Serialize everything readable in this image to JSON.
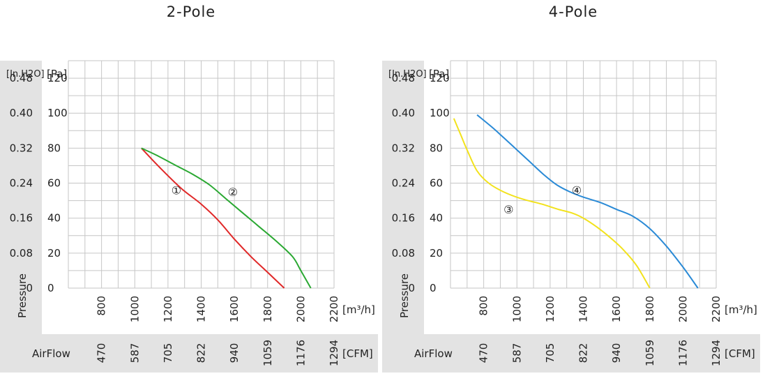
{
  "chart_data": [
    {
      "type": "line",
      "title": "2-Pole",
      "ylabel": "Pressure",
      "y_unit_inh2o": "[In.H2O]",
      "y_unit_pa": "[Pa]",
      "x_unit_m3h": "[m³/h]",
      "x_unit_cfm": "[CFM]",
      "x_axis2_label": "AirFlow",
      "xlim": [
        600,
        2200
      ],
      "ylim": [
        0,
        130
      ],
      "x_ticks_m3h": [
        "800",
        "1000",
        "1200",
        "1400",
        "1600",
        "1800",
        "2000",
        "2200"
      ],
      "x_ticks_cfm": [
        "470",
        "587",
        "705",
        "822",
        "940",
        "1059",
        "1176",
        "1294"
      ],
      "y_ticks_pa": [
        "120",
        "100",
        "80",
        "60",
        "40",
        "20",
        "0"
      ],
      "y_ticks_inh2o": [
        "0.48",
        "0.40",
        "0.32",
        "0.24",
        "0.16",
        "0.08",
        "0"
      ],
      "grid": true,
      "series": [
        {
          "marker": "①",
          "color": "#e02828",
          "x": [
            1040,
            1150,
            1280,
            1400,
            1500,
            1600,
            1700,
            1800,
            1900
          ],
          "y": [
            80,
            69,
            57,
            48,
            39,
            28,
            18,
            9,
            0
          ],
          "marker_pos": [
            1250,
            56
          ]
        },
        {
          "marker": "②",
          "color": "#2aa832",
          "x": [
            1040,
            1130,
            1250,
            1350,
            1450,
            1550,
            1650,
            1750,
            1850,
            1950,
            2000,
            2060
          ],
          "y": [
            80,
            76,
            70,
            65,
            59,
            51,
            43,
            35,
            27,
            18,
            10,
            0
          ],
          "marker_pos": [
            1590,
            55
          ]
        }
      ]
    },
    {
      "type": "line",
      "title": "4-Pole",
      "ylabel": "Pressure",
      "y_unit_inh2o": "[In.H2O]",
      "y_unit_pa": "[Pa]",
      "x_unit_m3h": "[m³/h]",
      "x_unit_cfm": "[CFM]",
      "x_axis2_label": "AirFlow",
      "xlim": [
        600,
        2200
      ],
      "ylim": [
        0,
        130
      ],
      "x_ticks_m3h": [
        "800",
        "1000",
        "1200",
        "1400",
        "1600",
        "1800",
        "2000",
        "2200"
      ],
      "x_ticks_cfm": [
        "470",
        "587",
        "705",
        "822",
        "940",
        "1059",
        "1176",
        "1294"
      ],
      "y_ticks_pa": [
        "120",
        "100",
        "80",
        "60",
        "40",
        "20",
        "0"
      ],
      "y_ticks_inh2o": [
        "0.48",
        "0.40",
        "0.32",
        "0.24",
        "0.16",
        "0.08",
        "0"
      ],
      "grid": true,
      "series": [
        {
          "marker": "③",
          "color": "#f2e21c",
          "x": [
            620,
            660,
            700,
            760,
            830,
            920,
            1030,
            1150,
            1250,
            1330,
            1400,
            1480,
            1560,
            1640,
            1720,
            1800
          ],
          "y": [
            97,
            88,
            79,
            67,
            60,
            55,
            51,
            48,
            45,
            43,
            40,
            35,
            29,
            22,
            13,
            0
          ],
          "marker_pos": [
            950,
            45
          ]
        },
        {
          "marker": "④",
          "color": "#2a8ad6",
          "x": [
            760,
            850,
            920,
            1000,
            1080,
            1160,
            1240,
            1320,
            1400,
            1500,
            1600,
            1700,
            1800,
            1900,
            2000,
            2090
          ],
          "y": [
            99,
            92,
            86,
            79,
            72,
            65,
            59,
            55,
            52,
            49,
            45,
            41,
            34,
            24,
            12,
            0
          ],
          "marker_pos": [
            1360,
            56
          ]
        }
      ]
    }
  ]
}
